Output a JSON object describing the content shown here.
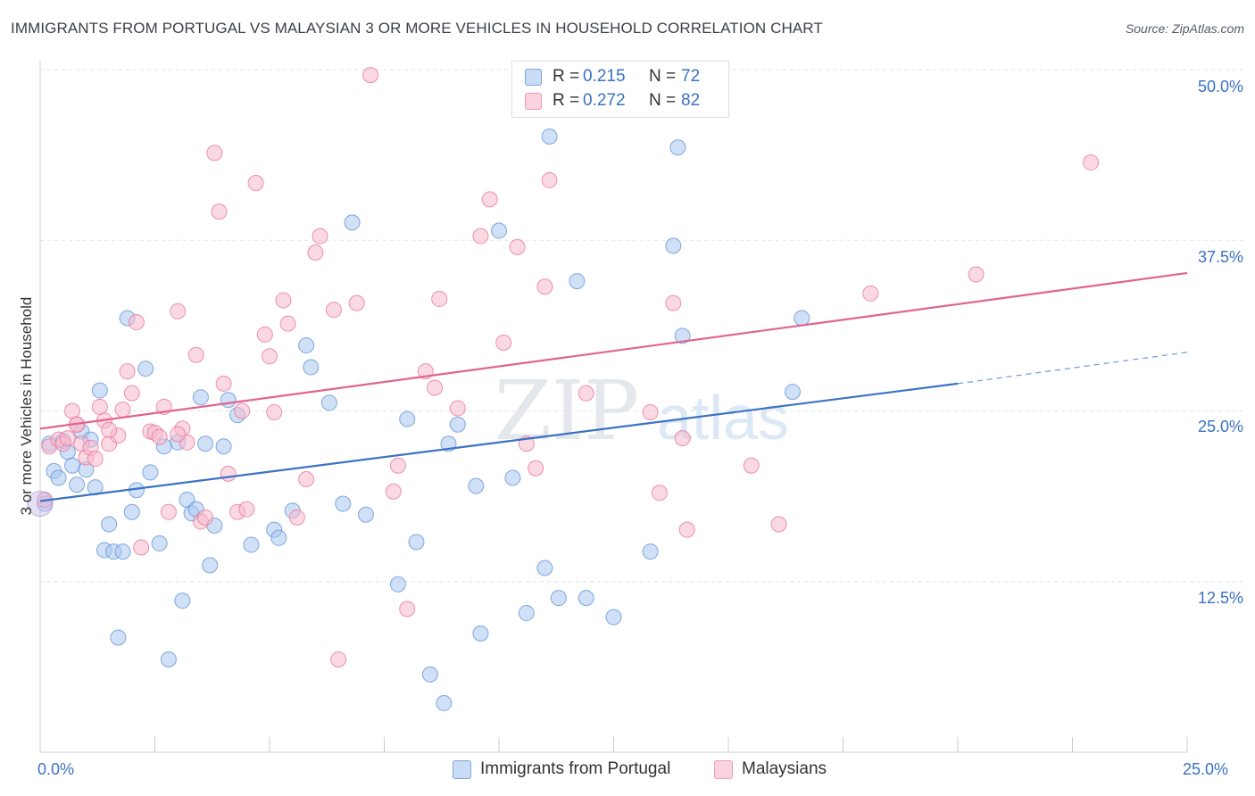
{
  "title": "IMMIGRANTS FROM PORTUGAL VS MALAYSIAN 3 OR MORE VEHICLES IN HOUSEHOLD CORRELATION CHART",
  "source": "Source: ZipAtlas.com",
  "watermark": {
    "zip": "ZIP",
    "atlas": "atlas"
  },
  "legend_top": [
    {
      "r_label": "R =",
      "r_value": "0.215",
      "n_label": "N =",
      "n_value": "72",
      "color": "#a9c7ee"
    },
    {
      "r_label": "R =",
      "r_value": "0.272",
      "n_label": "N =",
      "n_value": "82",
      "color": "#f6b9cc"
    }
  ],
  "chart_data": {
    "type": "scatter",
    "title": "IMMIGRANTS FROM PORTUGAL VS MALAYSIAN 3 OR MORE VEHICLES IN HOUSEHOLD CORRELATION CHART",
    "xlabel": "",
    "ylabel": "3 or more Vehicles in Household",
    "xlim": [
      0,
      25
    ],
    "ylim": [
      0,
      50
    ],
    "x_tick_labels": [
      "0.0%",
      "25.0%"
    ],
    "y_tick_labels": [
      "12.5%",
      "25.0%",
      "37.5%",
      "50.0%"
    ],
    "y_ticks": [
      12.5,
      25.0,
      37.5,
      50.0
    ],
    "grid": true,
    "legend_position": "bottom",
    "series": [
      {
        "name": "Immigrants from Portugal",
        "color": "#5b8fd6",
        "fill": "#a9c7ee",
        "trend": {
          "x0": 0,
          "y0": 18.4,
          "x1": 20,
          "y1": 27.0,
          "dash_to_x": 25,
          "dash_to_y": 29.3
        },
        "points": [
          [
            0.1,
            18.2
          ],
          [
            0.2,
            22.6
          ],
          [
            0.3,
            20.6
          ],
          [
            0.4,
            20.1
          ],
          [
            0.5,
            22.8
          ],
          [
            0.6,
            22.0
          ],
          [
            0.7,
            21.0
          ],
          [
            0.8,
            19.6
          ],
          [
            0.9,
            23.5
          ],
          [
            1.0,
            20.7
          ],
          [
            1.1,
            22.9
          ],
          [
            1.2,
            19.4
          ],
          [
            1.3,
            26.5
          ],
          [
            1.4,
            14.8
          ],
          [
            1.5,
            16.7
          ],
          [
            1.6,
            14.7
          ],
          [
            1.7,
            8.4
          ],
          [
            1.8,
            14.7
          ],
          [
            1.9,
            31.8
          ],
          [
            2.0,
            17.6
          ],
          [
            2.1,
            19.2
          ],
          [
            2.3,
            28.1
          ],
          [
            2.4,
            20.5
          ],
          [
            2.6,
            15.3
          ],
          [
            2.7,
            22.4
          ],
          [
            2.8,
            6.8
          ],
          [
            3.0,
            22.7
          ],
          [
            3.1,
            11.1
          ],
          [
            3.2,
            18.5
          ],
          [
            3.3,
            17.5
          ],
          [
            3.4,
            17.8
          ],
          [
            3.5,
            26.0
          ],
          [
            3.6,
            22.6
          ],
          [
            3.7,
            13.7
          ],
          [
            3.8,
            16.6
          ],
          [
            4.0,
            22.4
          ],
          [
            4.1,
            25.8
          ],
          [
            4.3,
            24.7
          ],
          [
            4.6,
            15.2
          ],
          [
            5.1,
            16.3
          ],
          [
            5.2,
            15.7
          ],
          [
            5.5,
            17.7
          ],
          [
            5.8,
            29.8
          ],
          [
            5.9,
            28.2
          ],
          [
            6.3,
            25.6
          ],
          [
            6.6,
            18.2
          ],
          [
            6.8,
            38.8
          ],
          [
            7.1,
            17.4
          ],
          [
            7.8,
            12.3
          ],
          [
            8.0,
            24.4
          ],
          [
            8.2,
            15.4
          ],
          [
            8.5,
            5.7
          ],
          [
            8.8,
            3.6
          ],
          [
            8.9,
            22.6
          ],
          [
            9.1,
            24.0
          ],
          [
            9.5,
            19.5
          ],
          [
            9.6,
            8.7
          ],
          [
            10.0,
            38.2
          ],
          [
            10.3,
            20.1
          ],
          [
            10.6,
            10.2
          ],
          [
            11.0,
            13.5
          ],
          [
            11.1,
            45.1
          ],
          [
            11.3,
            11.3
          ],
          [
            11.7,
            34.5
          ],
          [
            11.9,
            11.3
          ],
          [
            12.5,
            9.9
          ],
          [
            13.3,
            14.7
          ],
          [
            13.8,
            37.1
          ],
          [
            13.9,
            44.3
          ],
          [
            14.0,
            30.5
          ],
          [
            16.6,
            31.8
          ],
          [
            16.4,
            26.4
          ]
        ]
      },
      {
        "name": "Malaysians",
        "color": "#e86f99",
        "fill": "#f6b9cc",
        "trend": {
          "x0": 0,
          "y0": 23.7,
          "x1": 25,
          "y1": 35.1
        },
        "points": [
          [
            0.1,
            18.5
          ],
          [
            0.2,
            22.4
          ],
          [
            0.4,
            22.9
          ],
          [
            0.5,
            22.6
          ],
          [
            0.6,
            23.0
          ],
          [
            0.7,
            25.0
          ],
          [
            0.8,
            24.0
          ],
          [
            0.9,
            22.6
          ],
          [
            1.0,
            21.6
          ],
          [
            1.1,
            22.3
          ],
          [
            1.2,
            21.5
          ],
          [
            1.3,
            25.3
          ],
          [
            1.4,
            24.3
          ],
          [
            1.5,
            22.6
          ],
          [
            1.7,
            23.2
          ],
          [
            1.8,
            25.1
          ],
          [
            1.9,
            27.9
          ],
          [
            2.0,
            26.3
          ],
          [
            2.1,
            31.5
          ],
          [
            2.2,
            15.0
          ],
          [
            2.4,
            23.5
          ],
          [
            2.5,
            23.4
          ],
          [
            2.6,
            23.1
          ],
          [
            2.7,
            25.3
          ],
          [
            2.8,
            17.6
          ],
          [
            3.0,
            32.3
          ],
          [
            3.1,
            23.7
          ],
          [
            3.2,
            22.7
          ],
          [
            3.4,
            29.1
          ],
          [
            3.5,
            16.9
          ],
          [
            3.6,
            17.2
          ],
          [
            3.8,
            43.9
          ],
          [
            3.9,
            39.6
          ],
          [
            4.0,
            27.0
          ],
          [
            4.1,
            20.4
          ],
          [
            4.3,
            17.6
          ],
          [
            4.4,
            25.0
          ],
          [
            4.5,
            17.8
          ],
          [
            4.7,
            41.7
          ],
          [
            4.9,
            30.6
          ],
          [
            5.0,
            29.0
          ],
          [
            5.1,
            24.9
          ],
          [
            5.3,
            33.1
          ],
          [
            5.4,
            31.4
          ],
          [
            5.6,
            17.2
          ],
          [
            5.8,
            20.0
          ],
          [
            6.0,
            36.6
          ],
          [
            6.1,
            37.8
          ],
          [
            6.4,
            32.4
          ],
          [
            6.5,
            6.8
          ],
          [
            6.9,
            32.9
          ],
          [
            7.2,
            49.6
          ],
          [
            7.7,
            19.1
          ],
          [
            7.8,
            21.0
          ],
          [
            8.0,
            10.5
          ],
          [
            8.4,
            27.9
          ],
          [
            8.6,
            26.7
          ],
          [
            8.7,
            33.2
          ],
          [
            9.1,
            25.2
          ],
          [
            9.6,
            37.8
          ],
          [
            9.8,
            40.5
          ],
          [
            10.1,
            30.0
          ],
          [
            10.4,
            37.0
          ],
          [
            10.6,
            22.6
          ],
          [
            10.8,
            20.8
          ],
          [
            11.0,
            34.1
          ],
          [
            11.1,
            41.9
          ],
          [
            11.6,
            48.6
          ],
          [
            11.9,
            26.3
          ],
          [
            13.3,
            24.9
          ],
          [
            13.5,
            19.0
          ],
          [
            13.8,
            32.9
          ],
          [
            14.0,
            23.0
          ],
          [
            14.1,
            16.3
          ],
          [
            15.5,
            21.0
          ],
          [
            16.1,
            16.7
          ],
          [
            18.1,
            33.6
          ],
          [
            20.4,
            35.0
          ],
          [
            22.9,
            43.2
          ],
          [
            1.5,
            23.6
          ],
          [
            3.0,
            23.3
          ],
          [
            0.8,
            24.0
          ]
        ]
      }
    ]
  }
}
